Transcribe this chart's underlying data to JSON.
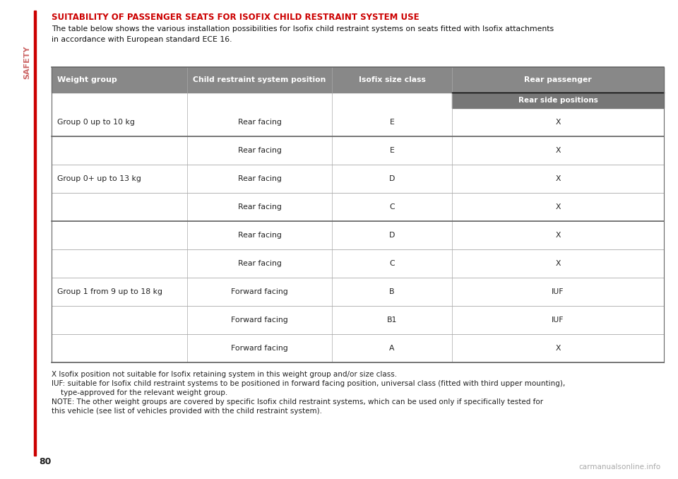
{
  "title": "SUITABILITY OF PASSENGER SEATS FOR ISOFIX CHILD RESTRAINT SYSTEM USE",
  "subtitle_line1": "The table below shows the various installation possibilities for Isofix child restraint systems on seats fitted with Isofix attachments",
  "subtitle_line2": "in accordance with European standard ECE 16.",
  "header_gray": "#888888",
  "header_darkgray": "#777777",
  "row_line_color": "#aaaaaa",
  "group_line_color": "#666666",
  "headers": [
    "Weight group",
    "Child restraint system position",
    "Isofix size class",
    "Rear passenger"
  ],
  "subheader4": "Rear side positions",
  "rows": [
    [
      "Group 0 up to 10 kg",
      "Rear facing",
      "E",
      "X"
    ],
    [
      "",
      "Rear facing",
      "E",
      "X"
    ],
    [
      "Group 0+ up to 13 kg",
      "Rear facing",
      "D",
      "X"
    ],
    [
      "",
      "Rear facing",
      "C",
      "X"
    ],
    [
      "",
      "Rear facing",
      "D",
      "X"
    ],
    [
      "",
      "Rear facing",
      "C",
      "X"
    ],
    [
      "Group 1 from 9 up to 18 kg",
      "Forward facing",
      "B",
      "IUF"
    ],
    [
      "",
      "Forward facing",
      "B1",
      "IUF"
    ],
    [
      "",
      "Forward facing",
      "A",
      "X"
    ]
  ],
  "group_ranges": [
    [
      0,
      0
    ],
    [
      1,
      3
    ],
    [
      4,
      8
    ]
  ],
  "group_labels": [
    "Group 0 up to 10 kg",
    "Group 0+ up to 13 kg",
    "Group 1 from 9 up to 18 kg"
  ],
  "group_separators_after": [
    0,
    3
  ],
  "footnotes": [
    "X Isofix position not suitable for Isofix retaining system in this weight group and/or size class.",
    "IUF: suitable for Isofix child restraint systems to be positioned in forward facing position, universal class (fitted with third upper mounting),",
    "    type-approved for the relevant weight group.",
    "NOTE: The other weight groups are covered by specific Isofix child restraint systems, which can be used only if specifically tested for",
    "this vehicle (see list of vehicles provided with the child restraint system)."
  ],
  "safety_text": "SAFETY",
  "page_number": "80",
  "watermark": "carmanualsonline.info",
  "title_color": "#cc0000",
  "left_bar_color": "#cc0000",
  "safety_color": "#cc6666"
}
